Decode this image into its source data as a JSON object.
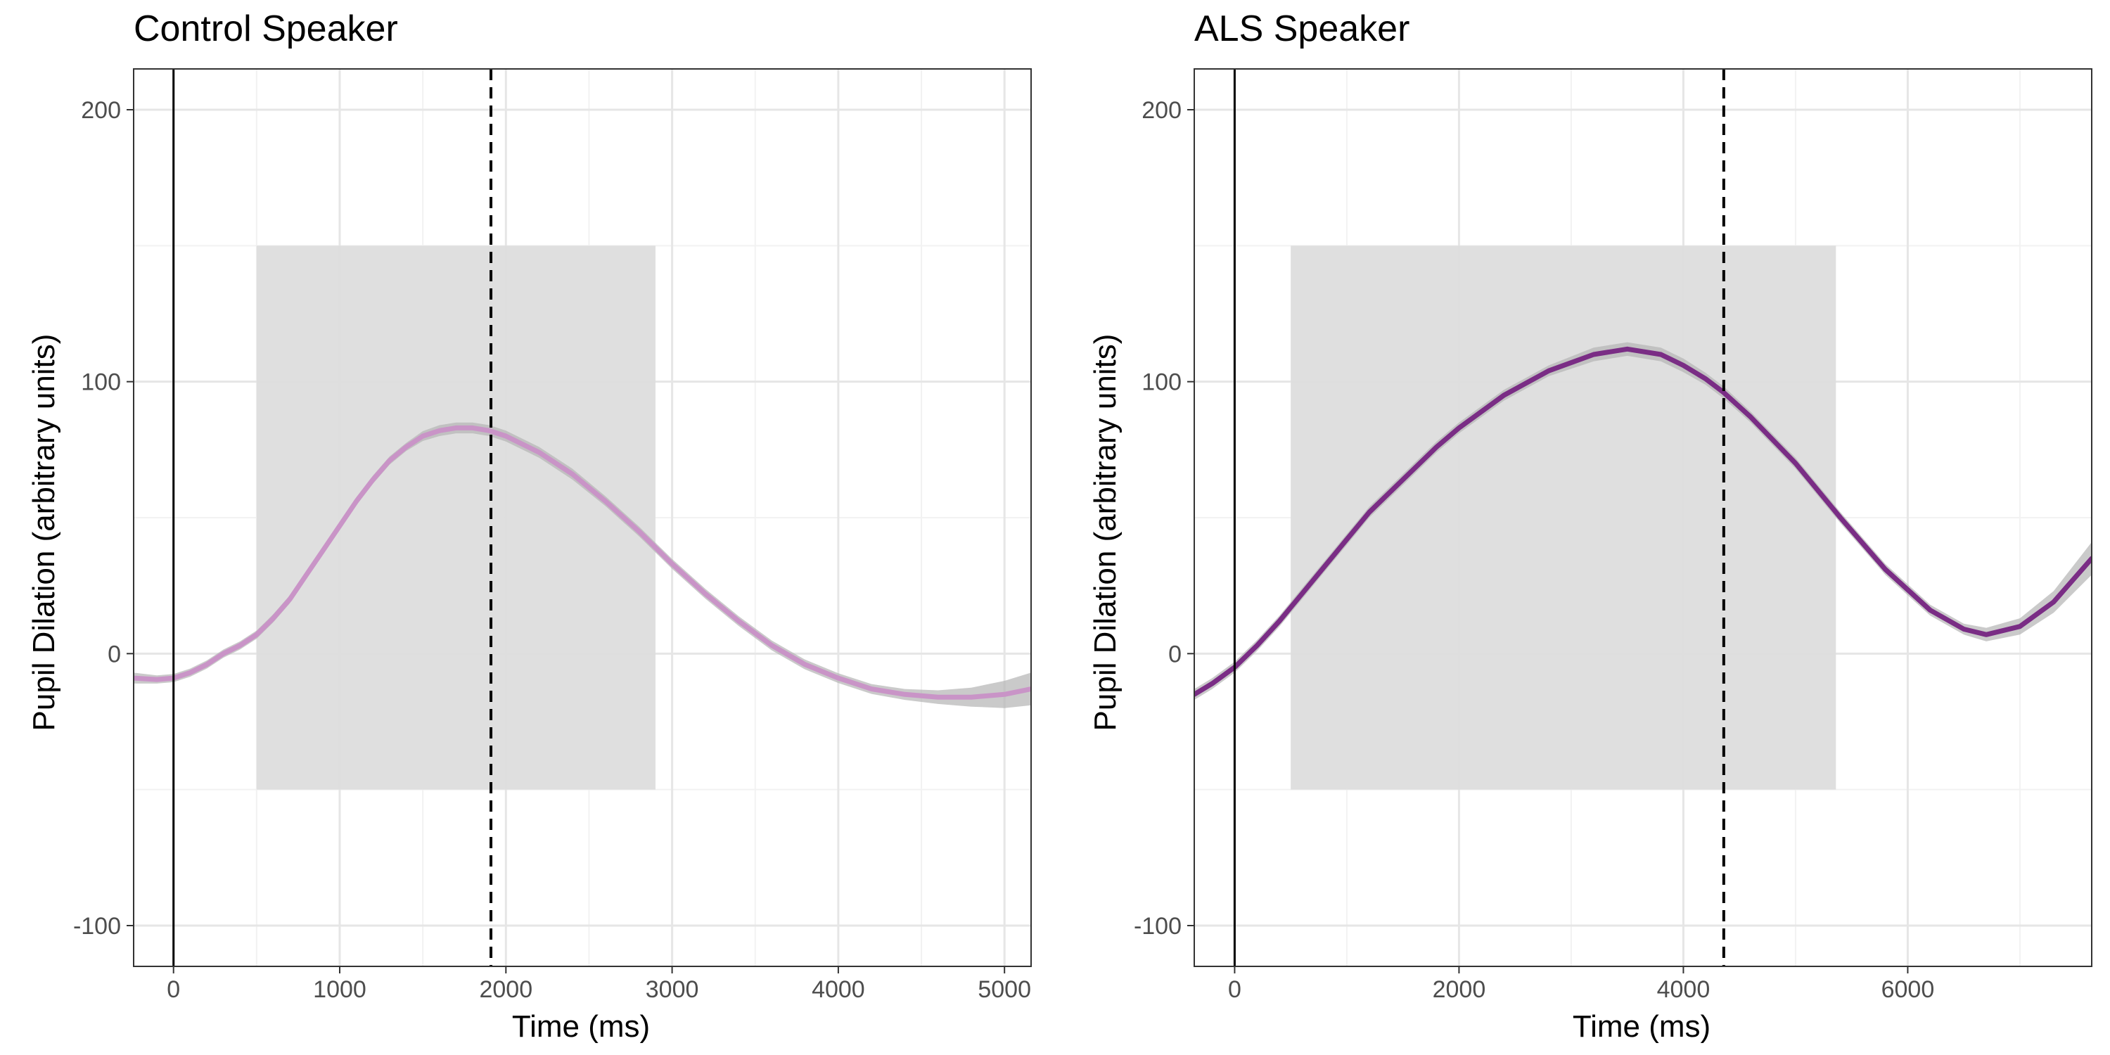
{
  "colors": {
    "control_line": "#c994c7",
    "als_line": "#7a2d85",
    "ribbon": "#b3b3b3",
    "window_shade": "#dddddd",
    "grid_major": "#e6e6e6",
    "grid_minor": "#f2f2f2",
    "panel_border": "#333333"
  },
  "chart_data": [
    {
      "type": "line",
      "title": "Control Speaker",
      "xlabel": "Time (ms)",
      "ylabel": "Pupil Dilation (arbitrary units)",
      "xlim": [
        -240,
        5160
      ],
      "ylim": [
        -115,
        215
      ],
      "x_ticks": [
        0,
        1000,
        2000,
        3000,
        4000,
        5000
      ],
      "y_ticks": [
        -100,
        0,
        100,
        200
      ],
      "x_tick_labels": [
        "0",
        "1000",
        "2000",
        "3000",
        "4000",
        "5000"
      ],
      "y_tick_labels": [
        "-100",
        "0",
        "100",
        "200"
      ],
      "grid": true,
      "vline_solid_x": 0,
      "vline_dashed_x": 1910,
      "shaded_window": {
        "x": [
          500,
          2900
        ],
        "y": [
          -50,
          150
        ]
      },
      "series": [
        {
          "x": [
            -240,
            -100,
            0,
            100,
            200,
            300,
            400,
            500,
            600,
            700,
            800,
            900,
            1000,
            1100,
            1200,
            1300,
            1400,
            1500,
            1600,
            1700,
            1800,
            1900,
            2000,
            2200,
            2400,
            2600,
            2800,
            3000,
            3200,
            3400,
            3600,
            3800,
            4000,
            4200,
            4400,
            4600,
            4800,
            5000,
            5160
          ],
          "y": [
            -9,
            -9.5,
            -9,
            -7,
            -4,
            0,
            3,
            7,
            13,
            20,
            29,
            38,
            47,
            56,
            64,
            71,
            76,
            80,
            82,
            83,
            83,
            82,
            80,
            74,
            66,
            56,
            45,
            33,
            22,
            12,
            3,
            -4,
            -9,
            -13,
            -15,
            -16,
            -16,
            -15,
            -13
          ],
          "ci_halfwidth": [
            2,
            1.5,
            1.5,
            1.5,
            1.5,
            1.5,
            1.5,
            1.5,
            1.5,
            1.5,
            1.5,
            1.5,
            1.5,
            1.5,
            1.5,
            1.5,
            1.5,
            1.8,
            2,
            2,
            2,
            2,
            2,
            2,
            2,
            1.8,
            1.8,
            1.8,
            1.8,
            1.8,
            1.8,
            1.8,
            1.8,
            1.8,
            2,
            2.5,
            3.5,
            5,
            6
          ]
        }
      ]
    },
    {
      "type": "line",
      "title": "ALS Speaker",
      "xlabel": "Time (ms)",
      "ylabel": "Pupil Dilation (arbitrary units)",
      "xlim": [
        -360,
        7640
      ],
      "ylim": [
        -115,
        215
      ],
      "x_ticks": [
        0,
        2000,
        4000,
        6000
      ],
      "y_ticks": [
        -100,
        0,
        100,
        200
      ],
      "x_tick_labels": [
        "0",
        "2000",
        "4000",
        "6000"
      ],
      "y_tick_labels": [
        "-100",
        "0",
        "100",
        "200"
      ],
      "grid": true,
      "vline_solid_x": 0,
      "vline_dashed_x": 4360,
      "shaded_window": {
        "x": [
          500,
          5360
        ],
        "y": [
          -50,
          150
        ]
      },
      "series": [
        {
          "x": [
            -360,
            -200,
            0,
            200,
            400,
            600,
            800,
            1000,
            1200,
            1500,
            1800,
            2000,
            2400,
            2800,
            3200,
            3500,
            3800,
            4000,
            4200,
            4360,
            4600,
            5000,
            5400,
            5800,
            6200,
            6500,
            6700,
            7000,
            7300,
            7640
          ],
          "y": [
            -15,
            -11,
            -5,
            3,
            12,
            22,
            32,
            42,
            52,
            64,
            76,
            83,
            95,
            104,
            110,
            112,
            110,
            106,
            101,
            96,
            87,
            70,
            50,
            31,
            16,
            9,
            7,
            10,
            19,
            35
          ],
          "ci_halfwidth": [
            2,
            2,
            2,
            2,
            2,
            2,
            2,
            2,
            2,
            2,
            2,
            2,
            2,
            2,
            2.5,
            2.5,
            2.5,
            2.5,
            2.2,
            2.2,
            2,
            2,
            2,
            2,
            2,
            2,
            2.5,
            3,
            4,
            6
          ]
        }
      ]
    }
  ]
}
